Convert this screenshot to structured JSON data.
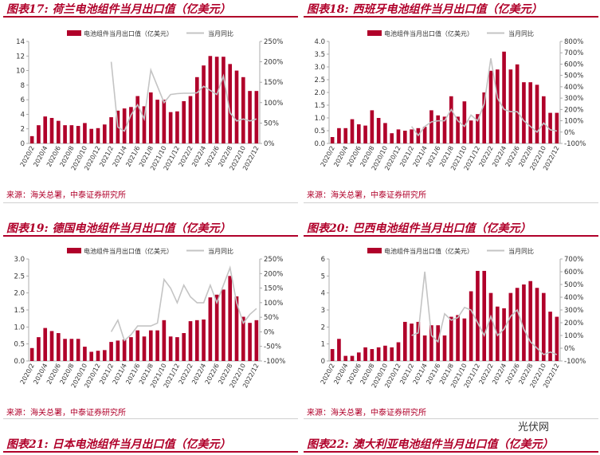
{
  "charts": [
    {
      "title": "图表17: 荷兰电池组件当月出口值（亿美元）",
      "source": "来源：海关总署，中泰证券研究所",
      "chart_data": {
        "type": "bar",
        "legend": [
          "电池组件当月出口值（亿美元）",
          "当月同比"
        ],
        "categories": [
          "2020/2",
          "2020/3",
          "2020/4",
          "2020/5",
          "2020/6",
          "2020/7",
          "2020/8",
          "2020/9",
          "2020/10",
          "2020/11",
          "2020/12",
          "2021/1",
          "2021/2",
          "2021/3",
          "2021/4",
          "2021/5",
          "2021/6",
          "2021/7",
          "2021/8",
          "2021/9",
          "2021/10",
          "2021/11",
          "2021/12",
          "2022/1",
          "2022/2",
          "2022/3",
          "2022/4",
          "2022/5",
          "2022/6",
          "2022/7",
          "2022/8",
          "2022/9",
          "2022/10",
          "2022/11",
          "2022/12"
        ],
        "xticks": [
          "2020/2",
          "2020/4",
          "2020/6",
          "2020/8",
          "2020/10",
          "2020/12",
          "2021/2",
          "2021/4",
          "2021/6",
          "2021/8",
          "2021/10",
          "2021/12",
          "2022/2",
          "2022/4",
          "2022/6",
          "2022/8",
          "2022/10",
          "2022/12"
        ],
        "bars": [
          1.0,
          2.5,
          3.7,
          3.5,
          3.1,
          2.5,
          2.5,
          2.4,
          2.8,
          2.0,
          2.1,
          2.6,
          3.6,
          4.5,
          4.8,
          5.0,
          6.5,
          5.1,
          7.0,
          6.0,
          6.0,
          4.3,
          4.4,
          5.8,
          6.5,
          9.1,
          10.7,
          12.0,
          11.9,
          11.9,
          10.9,
          10.0,
          9.1,
          7.2,
          7.2
        ],
        "line": [
          null,
          null,
          null,
          null,
          null,
          null,
          null,
          null,
          null,
          null,
          null,
          null,
          200,
          40,
          30,
          70,
          95,
          60,
          180,
          140,
          100,
          120,
          122,
          123,
          123,
          124,
          140,
          130,
          120,
          165,
          75,
          55,
          60,
          55,
          60
        ],
        "y_left": {
          "min": 0,
          "max": 14,
          "ticks": [
            "0",
            "2",
            "4",
            "6",
            "8",
            "10",
            "12",
            "14"
          ]
        },
        "y_right": {
          "min": 0,
          "max": 250,
          "ticks": [
            "0%",
            "50%",
            "100%",
            "150%",
            "200%",
            "250%"
          ]
        }
      }
    },
    {
      "title": "图表18: 西班牙电池组件当月出口值（亿美元）",
      "source": "来源：海关总署，中泰证券研究所",
      "chart_data": {
        "type": "bar",
        "legend": [
          "电池组件当月出口值（亿美元）",
          "当月同比"
        ],
        "categories": [
          "2020/2",
          "2020/3",
          "2020/4",
          "2020/5",
          "2020/6",
          "2020/7",
          "2020/8",
          "2020/9",
          "2020/10",
          "2020/11",
          "2020/12",
          "2021/1",
          "2021/2",
          "2021/3",
          "2021/4",
          "2021/5",
          "2021/6",
          "2021/7",
          "2021/8",
          "2021/9",
          "2021/10",
          "2021/11",
          "2021/12",
          "2022/1",
          "2022/2",
          "2022/3",
          "2022/4",
          "2022/5",
          "2022/6",
          "2022/7",
          "2022/8",
          "2022/9",
          "2022/10",
          "2022/11",
          "2022/12"
        ],
        "xticks": [
          "2020/2",
          "2020/4",
          "2020/6",
          "2020/8",
          "2020/10",
          "2020/12",
          "2021/2",
          "2021/4",
          "2021/6",
          "2021/8",
          "2021/10",
          "2021/12",
          "2022/2",
          "2022/4",
          "2022/6",
          "2022/8",
          "2022/10",
          "2022/12"
        ],
        "bars": [
          0.25,
          0.6,
          0.6,
          0.95,
          0.75,
          0.7,
          1.3,
          1.0,
          0.8,
          0.4,
          0.55,
          0.5,
          0.55,
          0.6,
          0.65,
          1.3,
          1.1,
          1.05,
          1.85,
          1.05,
          1.65,
          0.9,
          1.15,
          2.0,
          2.85,
          2.9,
          3.6,
          2.9,
          3.1,
          2.4,
          2.4,
          2.3,
          1.85,
          1.2,
          1.2
        ],
        "line": [
          null,
          null,
          null,
          null,
          null,
          null,
          null,
          null,
          null,
          null,
          null,
          null,
          50,
          -30,
          50,
          90,
          100,
          100,
          200,
          100,
          50,
          150,
          100,
          250,
          650,
          300,
          200,
          180,
          180,
          100,
          50,
          0,
          80,
          20,
          10
        ],
        "y_left": {
          "min": 0,
          "max": 4.0,
          "ticks": [
            "0.0",
            "0.5",
            "1.0",
            "1.5",
            "2.0",
            "2.5",
            "3.0",
            "3.5",
            "4.0"
          ]
        },
        "y_right": {
          "min": -100,
          "max": 800,
          "ticks": [
            "-100%",
            "0%",
            "100%",
            "200%",
            "300%",
            "400%",
            "500%",
            "600%",
            "700%",
            "800%"
          ]
        }
      }
    },
    {
      "title": "图表19: 德国电池组件当月出口值（亿美元）",
      "source": "来源：海关总署，中泰证券研究所",
      "chart_data": {
        "type": "bar",
        "legend": [
          "电池组件当月出口值（亿美元）",
          "当月同比"
        ],
        "categories": [
          "2020/2",
          "2020/3",
          "2020/4",
          "2020/5",
          "2020/6",
          "2020/7",
          "2020/8",
          "2020/9",
          "2020/10",
          "2020/11",
          "2020/12",
          "2021/1",
          "2021/2",
          "2021/3",
          "2021/4",
          "2021/5",
          "2021/6",
          "2021/7",
          "2021/8",
          "2021/9",
          "2021/10",
          "2021/11",
          "2021/12",
          "2022/1",
          "2022/2",
          "2022/3",
          "2022/4",
          "2022/5",
          "2022/6",
          "2022/7",
          "2022/8",
          "2022/9",
          "2022/10",
          "2022/11",
          "2022/12"
        ],
        "xticks": [
          "2020/2",
          "2020/4",
          "2020/6",
          "2020/8",
          "2020/10",
          "2020/12",
          "2021/2",
          "2021/4",
          "2021/6",
          "2021/8",
          "2021/10",
          "2021/12",
          "2022/2",
          "2022/4",
          "2022/6",
          "2022/8",
          "2022/10",
          "2022/12"
        ],
        "bars": [
          0.38,
          0.7,
          0.97,
          0.88,
          0.82,
          0.65,
          0.65,
          0.65,
          0.42,
          0.27,
          0.3,
          0.32,
          0.56,
          0.6,
          0.63,
          0.7,
          0.9,
          0.72,
          0.9,
          0.9,
          1.2,
          0.72,
          0.7,
          0.82,
          1.17,
          1.2,
          1.22,
          1.87,
          1.95,
          2.1,
          2.5,
          1.9,
          1.3,
          1.12,
          1.2
        ],
        "line": [
          null,
          null,
          null,
          null,
          null,
          null,
          null,
          null,
          null,
          null,
          null,
          null,
          0,
          40,
          -30,
          -10,
          20,
          20,
          20,
          30,
          180,
          150,
          100,
          160,
          120,
          100,
          100,
          160,
          100,
          160,
          220,
          100,
          30,
          60,
          80
        ],
        "y_left": {
          "min": 0,
          "max": 3.0,
          "ticks": [
            "0.0",
            "0.5",
            "1.0",
            "1.5",
            "2.0",
            "2.5",
            "3.0"
          ]
        },
        "y_right": {
          "min": -100,
          "max": 250,
          "ticks": [
            "-100%",
            "-50%",
            "0%",
            "50%",
            "100%",
            "150%",
            "200%",
            "250%"
          ]
        }
      }
    },
    {
      "title": "图表20: 巴西电池组件当月出口值（亿美元）",
      "source": "来源：海关总署，中泰证券研究所",
      "chart_data": {
        "type": "bar",
        "legend": [
          "电池组件当月出口值（亿美元）",
          "当月同比"
        ],
        "categories": [
          "2020/2",
          "2020/3",
          "2020/4",
          "2020/5",
          "2020/6",
          "2020/7",
          "2020/8",
          "2020/9",
          "2020/10",
          "2020/11",
          "2020/12",
          "2021/1",
          "2021/2",
          "2021/3",
          "2021/4",
          "2021/5",
          "2021/6",
          "2021/7",
          "2021/8",
          "2021/9",
          "2021/10",
          "2021/11",
          "2021/12",
          "2022/1",
          "2022/2",
          "2022/3",
          "2022/4",
          "2022/5",
          "2022/6",
          "2022/7",
          "2022/8",
          "2022/9",
          "2022/10",
          "2022/11",
          "2022/12"
        ],
        "xticks": [
          "2020/2",
          "2020/4",
          "2020/6",
          "2020/8",
          "2020/10",
          "2020/12",
          "2021/2",
          "2021/4",
          "2021/6",
          "2021/8",
          "2021/10",
          "2021/12",
          "2022/2",
          "2022/4",
          "2022/6",
          "2022/8",
          "2022/10",
          "2022/12"
        ],
        "bars": [
          0.7,
          1.3,
          0.3,
          0.3,
          0.5,
          0.8,
          0.7,
          0.8,
          0.9,
          0.8,
          1.1,
          2.3,
          2.2,
          2.3,
          1.5,
          2.1,
          2.1,
          1.5,
          2.6,
          2.7,
          2.5,
          4.1,
          5.3,
          5.3,
          4.0,
          3.2,
          3.1,
          4.0,
          4.3,
          4.5,
          4.7,
          4.3,
          4.0,
          2.9,
          2.6
        ],
        "line": [
          null,
          null,
          null,
          null,
          null,
          null,
          null,
          null,
          null,
          null,
          null,
          null,
          100,
          120,
          600,
          100,
          50,
          270,
          220,
          240,
          320,
          300,
          200,
          100,
          250,
          100,
          150,
          250,
          300,
          150,
          50,
          0,
          -50,
          -30,
          -50
        ],
        "y_left": {
          "min": 0,
          "max": 6,
          "ticks": [
            "0",
            "1",
            "2",
            "3",
            "4",
            "5",
            "6"
          ]
        },
        "y_right": {
          "min": -100,
          "max": 700,
          "ticks": [
            "-100%",
            "0%",
            "100%",
            "200%",
            "300%",
            "400%",
            "500%",
            "600%",
            "700%"
          ]
        }
      }
    }
  ],
  "bottom_titles": [
    "图表21: 日本电池组件当月出口值（亿美元）",
    "图表22: 澳大利亚电池组件当月出口值（亿美元）"
  ],
  "watermark": "光伏网",
  "colors": {
    "bar": "#b0002a",
    "line": "#c4c4c4",
    "title": "#b0002a"
  }
}
